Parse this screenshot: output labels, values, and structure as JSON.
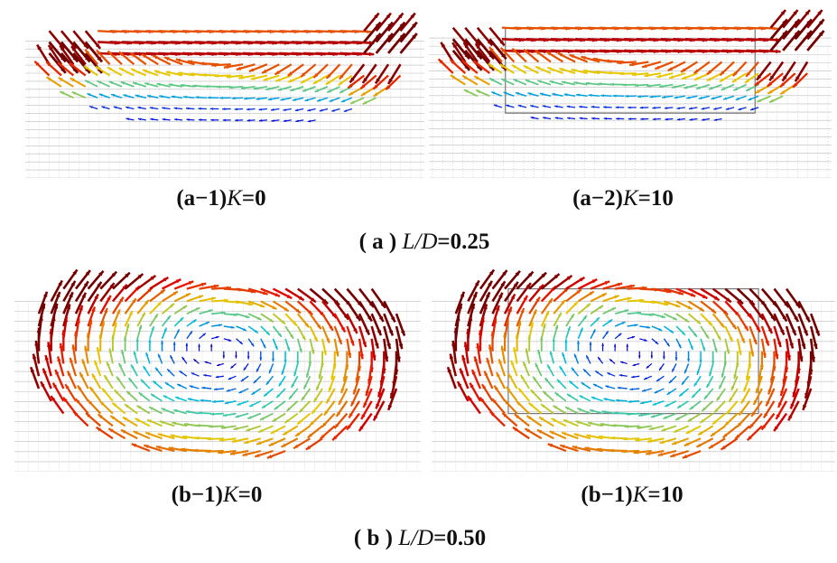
{
  "figures": [
    {
      "panels": [
        {
          "label": "(a−1)",
          "variable": "K",
          "value": "=0"
        },
        {
          "label": "(a−2)",
          "variable": "K",
          "value": "=10"
        }
      ],
      "caption": {
        "label": "( a )",
        "variable": "L/D",
        "value": "=0.25"
      }
    },
    {
      "panels": [
        {
          "label": "(b−1)",
          "variable": "K",
          "value": "=0"
        },
        {
          "label": "(b−1)",
          "variable": "K",
          "value": "=10"
        }
      ],
      "caption": {
        "label": "( b )",
        "variable": "L/D",
        "value": "=0.50"
      }
    }
  ]
}
